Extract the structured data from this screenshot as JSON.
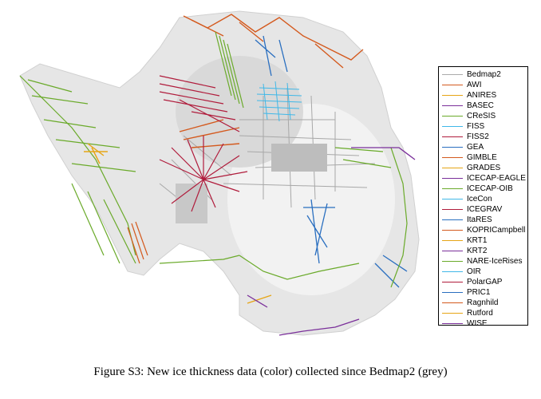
{
  "caption": "Figure S3: New ice thickness data (color) collected since Bedmap2 (grey)",
  "legend": [
    {
      "label": "Bedmap2",
      "color": "#aaaaaa"
    },
    {
      "label": "AWI",
      "color": "#d45a1e"
    },
    {
      "label": "ANIRES",
      "color": "#e6a516"
    },
    {
      "label": "BASEC",
      "color": "#7a2f9a"
    },
    {
      "label": "CReSIS",
      "color": "#6aaa2a"
    },
    {
      "label": "FISS",
      "color": "#40b8e8"
    },
    {
      "label": "FISS2",
      "color": "#b01c3c"
    },
    {
      "label": "GEA",
      "color": "#2a6fc0"
    },
    {
      "label": "GIMBLE",
      "color": "#d45a1e"
    },
    {
      "label": "GRADES",
      "color": "#e6a516"
    },
    {
      "label": "ICECAP-EAGLE",
      "color": "#7a2f9a"
    },
    {
      "label": "ICECAP-OIB",
      "color": "#6aaa2a"
    },
    {
      "label": "IceCon",
      "color": "#40b8e8"
    },
    {
      "label": "ICEGRAV",
      "color": "#b01c3c"
    },
    {
      "label": "ItaRES",
      "color": "#2a6fc0"
    },
    {
      "label": "KOPRICampbell",
      "color": "#d45a1e"
    },
    {
      "label": "KRT1",
      "color": "#e6a516"
    },
    {
      "label": "KRT2",
      "color": "#7a2f9a"
    },
    {
      "label": "NARE-IceRises",
      "color": "#6aaa2a"
    },
    {
      "label": "OIR",
      "color": "#40b8e8"
    },
    {
      "label": "PolarGAP",
      "color": "#b01c3c"
    },
    {
      "label": "PRIC1",
      "color": "#2a6fc0"
    },
    {
      "label": "Ragnhild",
      "color": "#d45a1e"
    },
    {
      "label": "Rutford",
      "color": "#e6a516"
    },
    {
      "label": "WISE",
      "color": "#7a2f9a"
    }
  ]
}
